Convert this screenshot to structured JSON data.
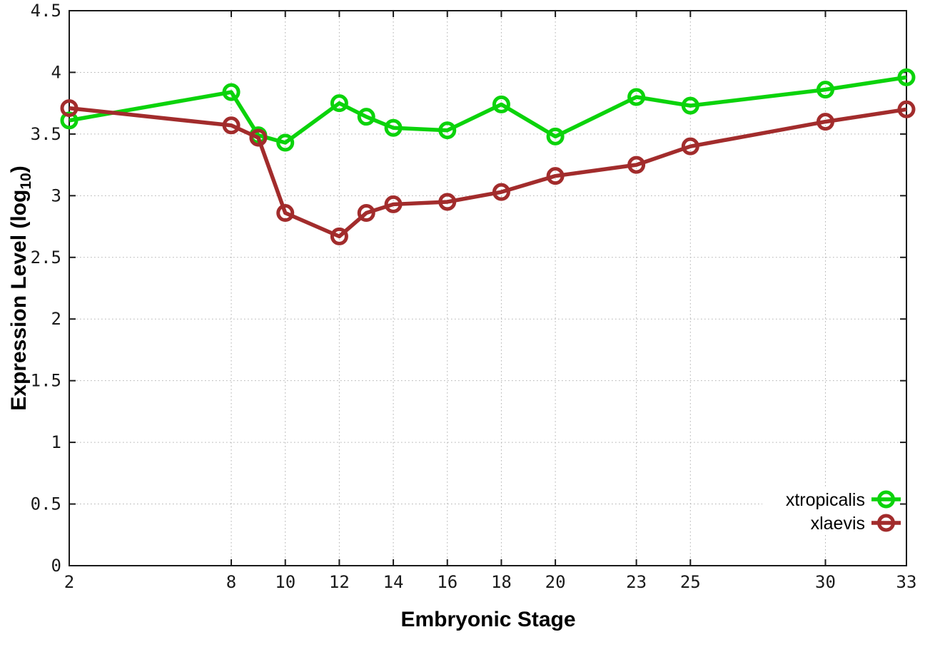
{
  "chart_data": {
    "type": "line",
    "title": "",
    "xlabel": "Embryonic Stage",
    "ylabel_main": "Expression Level (log",
    "ylabel_sub": "10",
    "ylabel_close": ")",
    "x": [
      2,
      8,
      9,
      10,
      12,
      13,
      14,
      16,
      18,
      20,
      23,
      25,
      30,
      33
    ],
    "series": [
      {
        "name": "xtropicalis",
        "color": "#0bd30b",
        "values": [
          3.61,
          3.84,
          3.49,
          3.43,
          3.75,
          3.64,
          3.55,
          3.53,
          3.74,
          3.48,
          3.8,
          3.73,
          3.86,
          3.96
        ]
      },
      {
        "name": "xlaevis",
        "color": "#a22c2c",
        "values": [
          3.71,
          3.57,
          3.47,
          2.86,
          2.67,
          2.86,
          2.93,
          2.95,
          3.03,
          3.16,
          3.25,
          3.4,
          3.6,
          3.7
        ]
      }
    ],
    "xlim": [
      2,
      33
    ],
    "ylim": [
      0,
      4.5
    ],
    "x_ticks": [
      2,
      8,
      10,
      12,
      14,
      16,
      18,
      20,
      23,
      25,
      30,
      33
    ],
    "x_tick_labels": [
      "2",
      "8",
      "10",
      "12",
      "14",
      "16",
      "18",
      "20",
      "23",
      "25",
      "30",
      "33"
    ],
    "y_ticks": [
      0,
      0.5,
      1,
      1.5,
      2,
      2.5,
      3,
      3.5,
      4,
      4.5
    ],
    "y_tick_labels": [
      "0",
      "0.5",
      "1",
      "1.5",
      "2",
      "2.5",
      "3",
      "3.5",
      "4",
      "4.5"
    ],
    "grid": true,
    "legend_position": "bottom-right-inside",
    "marker": "open-circle"
  },
  "colors": {
    "background": "#ffffff",
    "border": "#1a1a1a",
    "grid": "#b3b3b3",
    "tick": "#1a1a1a",
    "text": "#000000"
  }
}
